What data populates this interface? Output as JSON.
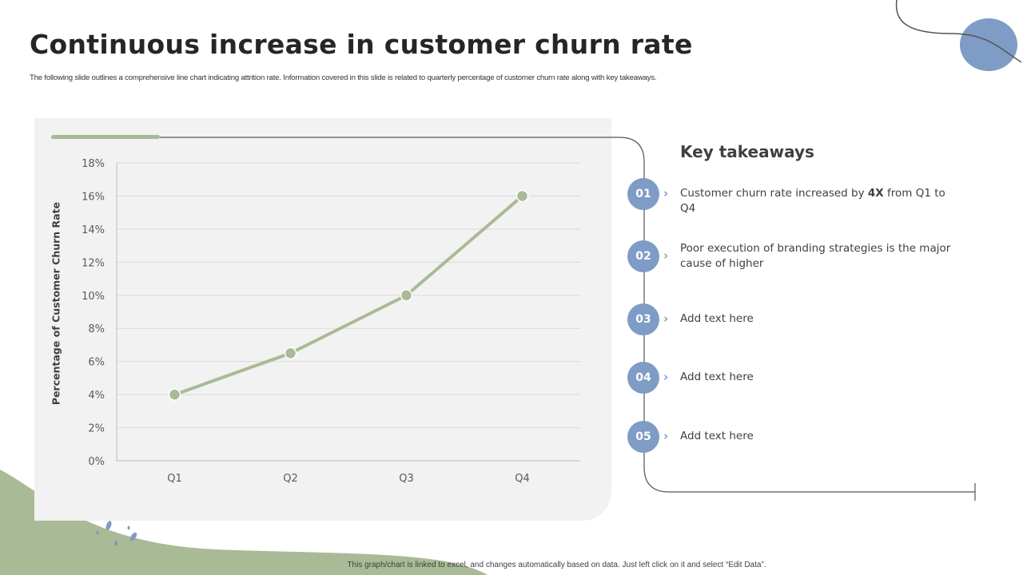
{
  "slide": {
    "title": "Continuous increase in customer churn rate",
    "subtitle": "The following slide outlines a comprehensive line chart indicating attrition rate. Information covered in this slide is related to quarterly percentage of customer churn rate along with key takeaways.",
    "footer": "This graph/chart is linked to excel, and changes automatically based on data. Just left click on it and select “Edit Data”."
  },
  "chart_data": {
    "type": "line",
    "categories": [
      "Q1",
      "Q2",
      "Q3",
      "Q4"
    ],
    "values": [
      4,
      6.5,
      10,
      16
    ],
    "title": "",
    "xlabel": "",
    "ylabel": "Percentage of Customer Churn Rate",
    "ylim": [
      0,
      18
    ],
    "ytick_step": 2,
    "ytick_suffix": "%",
    "grid": true,
    "legend": "none",
    "series_color": "#a9ba96"
  },
  "takeaways": {
    "title": "Key takeaways",
    "items": [
      {
        "num": "01",
        "pre": "Customer churn rate increased by ",
        "bold": "4X",
        "post": " from Q1 to Q4"
      },
      {
        "num": "02",
        "text": "Poor execution of branding strategies is the major cause of higher"
      },
      {
        "num": "03",
        "text": "Add text here"
      },
      {
        "num": "04",
        "text": "Add text here"
      },
      {
        "num": "05",
        "text": "Add text here"
      }
    ]
  },
  "colors": {
    "accent_blue": "#7e9cc5",
    "accent_green": "#a9ba96",
    "panel": "#f2f2f2"
  }
}
